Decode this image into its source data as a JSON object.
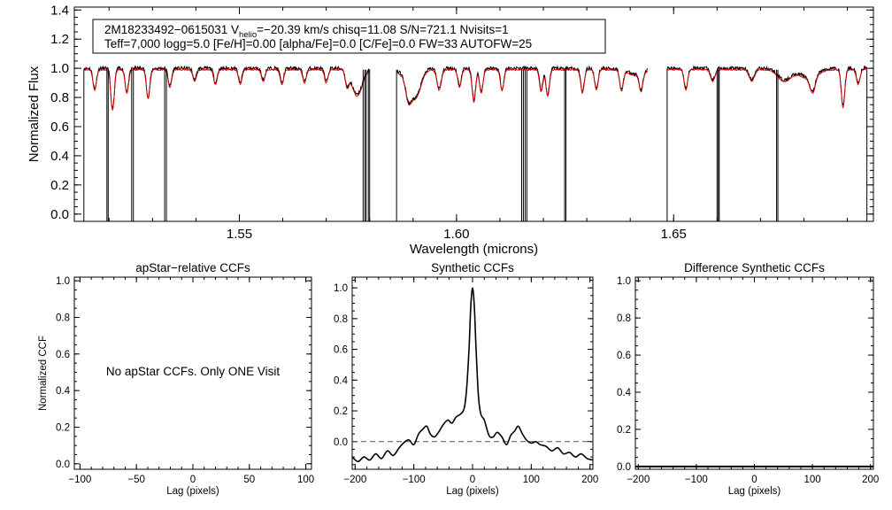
{
  "chart_data": [
    {
      "id": "spectrum",
      "type": "line",
      "title": "",
      "xlabel": "Wavelength (microns)",
      "ylabel": "Normalized Flux",
      "xlim": [
        1.512,
        1.696
      ],
      "ylim": [
        -0.05,
        1.42
      ],
      "xticks": [
        1.55,
        1.6,
        1.65
      ],
      "xtick_labels": [
        "1.55",
        "1.60",
        "1.65"
      ],
      "yticks": [
        0.0,
        0.2,
        0.4,
        0.6,
        0.8,
        1.0,
        1.2,
        1.4
      ],
      "ytick_labels": [
        "0.0",
        "0.2",
        "0.4",
        "0.6",
        "0.8",
        "1.0",
        "1.2",
        "1.4"
      ],
      "info_box": {
        "star_id": "2M18233492−0615031",
        "v_label": "V",
        "v_subscript": "helio",
        "v_value": "=−20.39 km/s",
        "stats": "chisq=11.08  S/N=721.1  Nvisits=1",
        "params": "Teff=7,000 logg=5.0 [Fe/H]=0.00 [alpha/Fe]=0.0 [C/Fe]=0.0 FW=33 AUTOFW=25"
      },
      "chips": [
        [
          1.5142,
          1.58
        ],
        [
          1.5862,
          1.644
        ],
        [
          1.6485,
          1.6945
        ]
      ],
      "chip_edge_drops": [
        1.5142,
        1.58,
        1.5862,
        1.6485,
        1.6945
      ],
      "bad_pixel_drops": [
        1.5195,
        1.5198,
        1.5252,
        1.5256,
        1.5328,
        1.5332,
        1.5785,
        1.5789,
        1.5792,
        1.5797,
        1.615,
        1.6154,
        1.6158,
        1.6162,
        1.6249,
        1.6252,
        1.66,
        1.6603,
        1.6605,
        1.6737,
        1.674
      ],
      "absorption_lines": [
        [
          1.5167,
          0.14,
          0.0004
        ],
        [
          1.5208,
          0.28,
          0.0004
        ],
        [
          1.5241,
          0.16,
          0.0004
        ],
        [
          1.529,
          0.2,
          0.0004
        ],
        [
          1.534,
          0.12,
          0.0004
        ],
        [
          1.5397,
          0.08,
          0.0004
        ],
        [
          1.5445,
          0.1,
          0.0004
        ],
        [
          1.5502,
          0.1,
          0.0004
        ],
        [
          1.5555,
          0.08,
          0.0004
        ],
        [
          1.5598,
          0.1,
          0.0004
        ],
        [
          1.565,
          0.09,
          0.0004
        ],
        [
          1.57,
          0.09,
          0.0004
        ],
        [
          1.5748,
          0.1,
          0.0004
        ],
        [
          1.5771,
          0.18,
          0.0012
        ],
        [
          1.5889,
          0.12,
          0.0006
        ],
        [
          1.5906,
          0.18,
          0.0012
        ],
        [
          1.596,
          0.14,
          0.0005
        ],
        [
          1.6007,
          0.12,
          0.0004
        ],
        [
          1.604,
          0.22,
          0.0004
        ],
        [
          1.6057,
          0.16,
          0.0004
        ],
        [
          1.6105,
          0.14,
          0.0004
        ],
        [
          1.6195,
          0.15,
          0.0004
        ],
        [
          1.621,
          0.18,
          0.0004
        ],
        [
          1.629,
          0.16,
          0.0004
        ],
        [
          1.6322,
          0.14,
          0.0004
        ],
        [
          1.638,
          0.14,
          0.0004
        ],
        [
          1.6425,
          0.12,
          0.0004
        ],
        [
          1.6528,
          0.14,
          0.0004
        ],
        [
          1.659,
          0.08,
          0.0005
        ],
        [
          1.668,
          0.08,
          0.0006
        ],
        [
          1.6755,
          0.08,
          0.0015
        ],
        [
          1.682,
          0.11,
          0.0006
        ],
        [
          1.689,
          0.26,
          0.0004
        ],
        [
          1.6925,
          0.1,
          0.0004
        ]
      ],
      "series": [
        {
          "name": "observed",
          "color": "#000000",
          "continuum": 1.0,
          "noise": 0.012
        },
        {
          "name": "synthetic",
          "color": "#e00000",
          "continuum": 0.99,
          "noise": 0.004
        }
      ]
    },
    {
      "id": "apstar_ccf",
      "type": "line",
      "title": "apStar−relative CCFs",
      "xlabel": "Lag (pixels)",
      "ylabel": "Normalized CCF",
      "xlim": [
        -105,
        105
      ],
      "ylim": [
        -0.03,
        1.02
      ],
      "xticks": [
        -100,
        -50,
        0,
        50,
        100
      ],
      "xtick_labels": [
        "−100",
        "−50",
        "0",
        "50",
        "100"
      ],
      "yticks": [
        0.0,
        0.2,
        0.4,
        0.6,
        0.8,
        1.0
      ],
      "ytick_labels": [
        "0.0",
        "0.2",
        "0.4",
        "0.6",
        "0.8",
        "1.0"
      ],
      "annotation": "No apStar CCFs.  Only ONE Visit",
      "series": []
    },
    {
      "id": "synthetic_ccf",
      "type": "line",
      "title": "Synthetic CCFs",
      "xlabel": "Lag (pixels)",
      "ylabel": "",
      "xlim": [
        -205,
        205
      ],
      "ylim": [
        -0.18,
        1.07
      ],
      "xticks": [
        -200,
        -100,
        0,
        100,
        200
      ],
      "xtick_labels": [
        "−200",
        "−100",
        "0",
        "100",
        "200"
      ],
      "yticks": [
        0.0,
        0.2,
        0.4,
        0.6,
        0.8,
        1.0
      ],
      "ytick_labels": [
        "0.0",
        "0.2",
        "0.4",
        "0.6",
        "0.8",
        "1.0"
      ],
      "reference_line": {
        "y": 0.0,
        "style": "dashed"
      },
      "series": [
        {
          "name": "ccf",
          "x": [
            -205,
            -195,
            -185,
            -175,
            -165,
            -155,
            -145,
            -135,
            -125,
            -115,
            -108,
            -100,
            -92,
            -85,
            -78,
            -72,
            -65,
            -58,
            -50,
            -42,
            -35,
            -28,
            -20,
            -14,
            -10,
            -6,
            -3,
            0,
            3,
            6,
            10,
            14,
            20,
            28,
            35,
            42,
            50,
            58,
            65,
            72,
            78,
            85,
            92,
            100,
            108,
            115,
            125,
            135,
            145,
            155,
            165,
            175,
            185,
            195,
            205
          ],
          "y": [
            -0.1,
            -0.13,
            -0.1,
            -0.12,
            -0.08,
            -0.11,
            -0.06,
            -0.09,
            -0.04,
            0.0,
            0.01,
            -0.02,
            0.05,
            0.08,
            0.1,
            0.05,
            0.03,
            0.06,
            0.11,
            0.14,
            0.12,
            0.16,
            0.18,
            0.22,
            0.35,
            0.6,
            0.88,
            1.0,
            0.88,
            0.6,
            0.3,
            0.18,
            0.14,
            0.04,
            0.03,
            0.06,
            0.03,
            -0.02,
            0.04,
            0.07,
            0.1,
            0.05,
            0.01,
            -0.01,
            0.0,
            -0.02,
            -0.03,
            -0.06,
            -0.04,
            -0.08,
            -0.07,
            -0.1,
            -0.08,
            -0.11,
            -0.12
          ]
        }
      ]
    },
    {
      "id": "difference_ccf",
      "type": "line",
      "title": "Difference Synthetic CCFs",
      "xlabel": "Lag (pixels)",
      "ylabel": "",
      "xlim": [
        -205,
        205
      ],
      "ylim": [
        -0.015,
        1.02
      ],
      "xticks": [
        -200,
        -100,
        0,
        100,
        200
      ],
      "xtick_labels": [
        "−200",
        "−100",
        "0",
        "100",
        "200"
      ],
      "yticks": [
        0.0,
        0.2,
        0.4,
        0.6,
        0.8,
        1.0
      ],
      "ytick_labels": [
        "0.0",
        "0.2",
        "0.4",
        "0.6",
        "0.8",
        "1.0"
      ],
      "series": [
        {
          "name": "difference",
          "x": [
            -205,
            205
          ],
          "y": [
            0.0,
            0.0
          ]
        }
      ]
    }
  ]
}
